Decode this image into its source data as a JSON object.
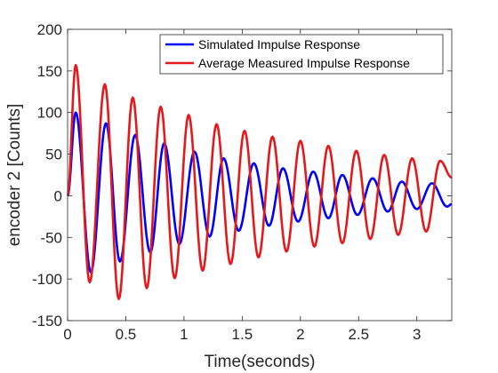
{
  "chart_data": {
    "type": "line",
    "title": "",
    "xlabel": "Time(seconds)",
    "ylabel": "encoder 2 [Counts]",
    "xlim": [
      0,
      3.3
    ],
    "ylim": [
      -150,
      200
    ],
    "xticks": [
      0,
      0.5,
      1,
      1.5,
      2,
      2.5,
      3
    ],
    "xtick_labels": [
      "0",
      "0.5",
      "1",
      "1.5",
      "2",
      "2.5",
      "3"
    ],
    "yticks": [
      -150,
      -100,
      -50,
      0,
      50,
      100,
      150,
      200
    ],
    "ytick_labels": [
      "-150",
      "-100",
      "-50",
      "0",
      "50",
      "100",
      "150",
      "200"
    ],
    "grid": false,
    "legend_position": "top-right",
    "series": [
      {
        "name": "Simulated Impulse Response",
        "color": "#0000ff",
        "x": [
          0,
          0.07,
          0.2,
          0.33,
          0.45,
          0.58,
          0.71,
          0.83,
          0.96,
          1.09,
          1.22,
          1.34,
          1.47,
          1.6,
          1.73,
          1.85,
          1.98,
          2.11,
          2.24,
          2.36,
          2.49,
          2.62,
          2.75,
          2.87,
          3.0,
          3.13,
          3.26,
          3.3
        ],
        "y": [
          0,
          100,
          -92,
          87,
          -79,
          73,
          -68,
          63,
          -58,
          53,
          -49,
          45,
          -42,
          39,
          -36,
          33,
          -31,
          29,
          -27,
          25,
          -23,
          21,
          -19,
          17,
          -16,
          15,
          -13,
          -10
        ]
      },
      {
        "name": "Average Measured Impulse Response",
        "color": "#e31a1c",
        "x": [
          0,
          0.07,
          0.19,
          0.32,
          0.44,
          0.56,
          0.68,
          0.8,
          0.92,
          1.04,
          1.16,
          1.28,
          1.4,
          1.52,
          1.64,
          1.76,
          1.88,
          2.0,
          2.12,
          2.24,
          2.36,
          2.48,
          2.6,
          2.72,
          2.84,
          2.96,
          3.08,
          3.2,
          3.3
        ],
        "y": [
          0,
          157,
          -104,
          134,
          -124,
          118,
          -111,
          107,
          -99,
          97,
          -90,
          86,
          -82,
          78,
          -74,
          71,
          -67,
          66,
          -61,
          60,
          -57,
          54,
          -52,
          49,
          -47,
          45,
          -43,
          42,
          22
        ]
      }
    ]
  }
}
